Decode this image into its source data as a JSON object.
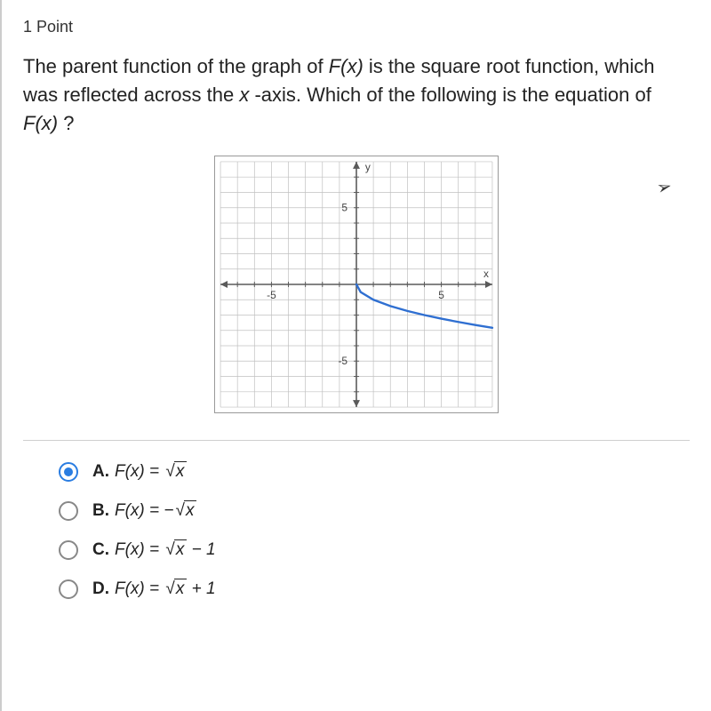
{
  "points_label": "1 Point",
  "question_parts": {
    "p1": "The parent function of the graph of ",
    "fx": "F(x)",
    "p2": " is the square root function, which was reflected across the ",
    "xaxis": "x",
    "p3": "-axis. Which of the following is the equation of ",
    "p4": " ?"
  },
  "chart": {
    "type": "line",
    "x_range": [
      -8,
      8
    ],
    "y_range": [
      -8,
      8
    ],
    "grid_step": 1,
    "tick_labels_x": {
      "-5": "-5",
      "5": "5"
    },
    "tick_labels_y": {
      "5": "5",
      "-5": "-5"
    },
    "axis_labels": {
      "x": "x",
      "y": "y"
    },
    "background_color": "#ffffff",
    "grid_color": "#c0c0c0",
    "axis_color": "#5a5a5a",
    "curve_color": "#2f6fd1",
    "curve_width": 2.4,
    "curve": "F(x) = -sqrt(x)",
    "curve_points": [
      [
        0,
        0
      ],
      [
        0.25,
        -0.5
      ],
      [
        1,
        -1
      ],
      [
        2,
        -1.414
      ],
      [
        3,
        -1.732
      ],
      [
        4,
        -2
      ],
      [
        5,
        -2.236
      ],
      [
        6,
        -2.449
      ],
      [
        7,
        -2.646
      ],
      [
        8,
        -2.828
      ]
    ]
  },
  "options": [
    {
      "letter": "A.",
      "label_prefix": "F(x) = ",
      "radicand": "x",
      "suffix": "",
      "neg": false,
      "selected": true
    },
    {
      "letter": "B.",
      "label_prefix": "F(x) = ",
      "radicand": "x",
      "suffix": "",
      "neg": true,
      "selected": false
    },
    {
      "letter": "C.",
      "label_prefix": "F(x) = ",
      "radicand": "x",
      "suffix": " − 1",
      "neg": false,
      "selected": false
    },
    {
      "letter": "D.",
      "label_prefix": "F(x) = ",
      "radicand": "x",
      "suffix": " + 1",
      "neg": false,
      "selected": false
    }
  ],
  "colors": {
    "accent": "#2a7de1",
    "text": "#222222",
    "divider": "#cfcfcf"
  }
}
